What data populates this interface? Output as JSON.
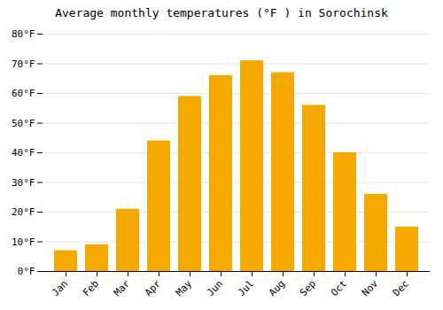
{
  "chart_data": {
    "type": "bar",
    "title": "Average monthly temperatures (°F ) in Sorochinsk",
    "categories": [
      "Jan",
      "Feb",
      "Mar",
      "Apr",
      "May",
      "Jun",
      "Jul",
      "Aug",
      "Sep",
      "Oct",
      "Nov",
      "Dec"
    ],
    "values": [
      7,
      9,
      21,
      44,
      59,
      66,
      71,
      67,
      56,
      40,
      26,
      15
    ],
    "color": "#F5A800",
    "ylim": [
      0,
      80
    ],
    "yticks": [
      {
        "value": 0,
        "label": "0°F"
      },
      {
        "value": 10,
        "label": "10°F"
      },
      {
        "value": 20,
        "label": "20°F"
      },
      {
        "value": 30,
        "label": "30°F"
      },
      {
        "value": 40,
        "label": "40°F"
      },
      {
        "value": 50,
        "label": "50°F"
      },
      {
        "value": 60,
        "label": "60°F"
      },
      {
        "value": 70,
        "label": "70°F"
      },
      {
        "value": 80,
        "label": "80°F"
      }
    ],
    "grid": true
  }
}
